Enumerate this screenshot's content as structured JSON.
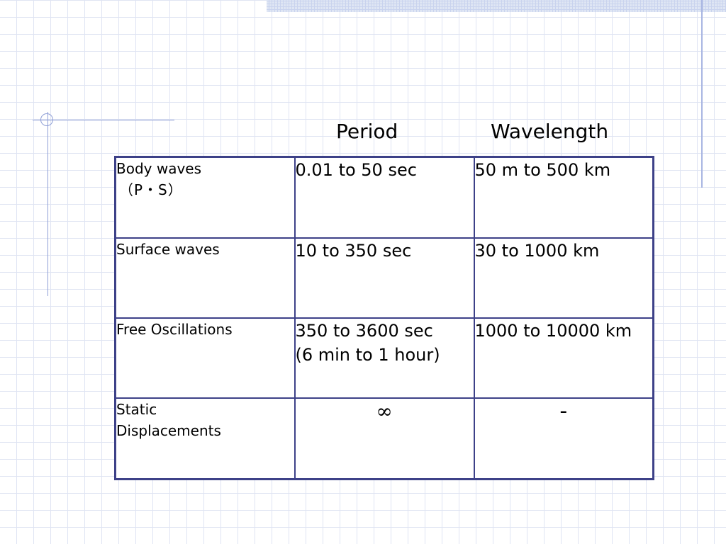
{
  "headers": {
    "period": "Period",
    "wavelength": "Wavelength"
  },
  "rows": [
    {
      "label": "Body waves",
      "sublabel": "（P・S）",
      "period": "0.01 to 50 sec",
      "period_note": "",
      "wavelength": "50 m to 500 km"
    },
    {
      "label": "Surface waves",
      "sublabel": "",
      "period": "10 to 350 sec",
      "period_note": "",
      "wavelength": "30 to 1000 km"
    },
    {
      "label": "Free Oscillations",
      "sublabel": "",
      "period": "350 to 3600 sec",
      "period_note": "(6 min to 1 hour)",
      "wavelength": "1000 to 10000 km"
    },
    {
      "label": "Static",
      "sublabel": "Displacements",
      "period": "∞",
      "period_note": "",
      "wavelength": "-"
    }
  ],
  "colors": {
    "table_border": "#3d4188",
    "grid_line": "#dfe4f3",
    "deco_line": "#8f9fd6"
  }
}
